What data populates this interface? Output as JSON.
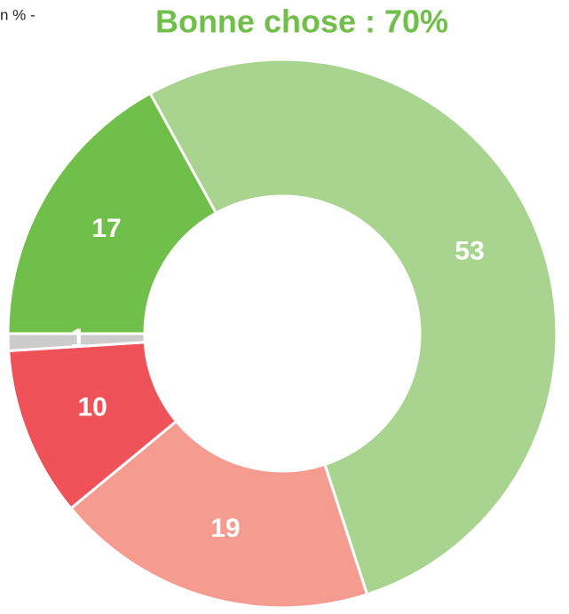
{
  "chart_data": {
    "type": "pie",
    "subtitle": "n % -",
    "title": "Bonne chose : 70%",
    "values": [
      53,
      19,
      10,
      1,
      17
    ],
    "colors": [
      "#a9d48f",
      "#f59b8f",
      "#ef5359",
      "#cccccc",
      "#70bf4a"
    ]
  }
}
